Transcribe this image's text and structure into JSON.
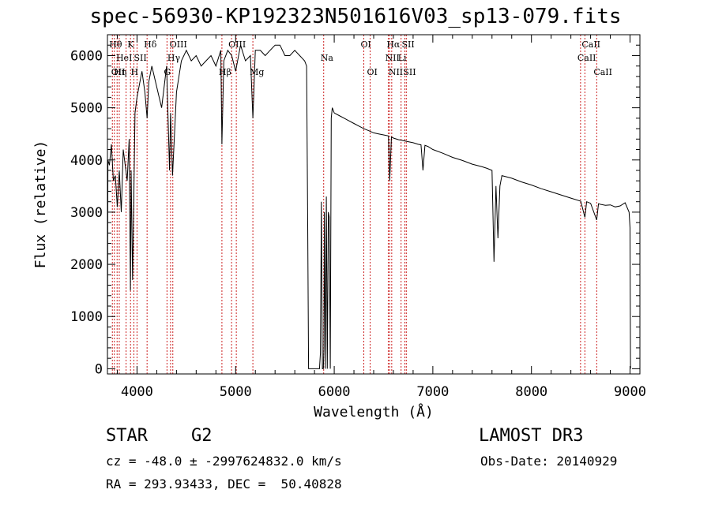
{
  "chart_data": {
    "type": "line",
    "title": "spec-56930-KP192323N501616V03_sp13-079.fits",
    "xlabel": "Wavelength (Å)",
    "ylabel": "Flux (relative)",
    "xlim": [
      3700,
      9100
    ],
    "ylim": [
      -100,
      6400
    ],
    "xticks": [
      4000,
      5000,
      6000,
      7000,
      8000,
      9000
    ],
    "yticks": [
      0,
      1000,
      2000,
      3000,
      4000,
      5000,
      6000
    ],
    "grid": false,
    "series": [
      {
        "x": [
          3700,
          3705,
          3720,
          3740,
          3760,
          3780,
          3800,
          3820,
          3840,
          3860,
          3880,
          3900,
          3920,
          3933,
          3940,
          3955,
          3968,
          3980,
          4000,
          4020,
          4050,
          4080,
          4102,
          4120,
          4150,
          4200,
          4250,
          4300,
          4330,
          4340,
          4360,
          4400,
          4450,
          4500,
          4550,
          4600,
          4650,
          4700,
          4750,
          4800,
          4850,
          4861,
          4880,
          4920,
          4960,
          5000,
          5050,
          5100,
          5150,
          5175,
          5200,
          5250,
          5300,
          5350,
          5400,
          5450,
          5500,
          5550,
          5600,
          5650,
          5700,
          5720,
          5730,
          5740,
          5750,
          5760,
          5780,
          5800,
          5820,
          5840,
          5850,
          5860,
          5870,
          5880,
          5890,
          5895,
          5900,
          5910,
          5920,
          5930,
          5940,
          5950,
          5960,
          5970,
          5980,
          6000,
          6050,
          6100,
          6150,
          6200,
          6250,
          6300,
          6350,
          6400,
          6450,
          6500,
          6550,
          6563,
          6580,
          6600,
          6650,
          6700,
          6750,
          6800,
          6850,
          6880,
          6900,
          6920,
          6950,
          7000,
          7100,
          7200,
          7300,
          7400,
          7500,
          7550,
          7600,
          7620,
          7640,
          7660,
          7680,
          7700,
          7800,
          7900,
          8000,
          8100,
          8200,
          8300,
          8400,
          8500,
          8542,
          8560,
          8600,
          8662,
          8680,
          8700,
          8750,
          8800,
          8850,
          8900,
          8950,
          8990,
          9000,
          9005
        ],
        "y": [
          0,
          4000,
          3900,
          4300,
          3600,
          3700,
          3100,
          3800,
          3000,
          4200,
          3900,
          3600,
          4400,
          1500,
          3800,
          1700,
          3400,
          4900,
          5200,
          5400,
          5700,
          5300,
          4800,
          5500,
          5800,
          5400,
          5000,
          5800,
          3800,
          4900,
          3700,
          5300,
          5900,
          6100,
          5900,
          6000,
          5800,
          5900,
          6000,
          5800,
          6100,
          4300,
          5900,
          6100,
          6000,
          5700,
          6200,
          5900,
          6000,
          4800,
          6100,
          6100,
          6000,
          6100,
          6200,
          6200,
          6000,
          6000,
          6100,
          6000,
          5900,
          5800,
          3000,
          0,
          0,
          0,
          0,
          0,
          0,
          0,
          0,
          300,
          3200,
          0,
          0,
          400,
          3000,
          0,
          3300,
          0,
          3000,
          2900,
          0,
          4800,
          5000,
          4900,
          4850,
          4800,
          4750,
          4700,
          4650,
          4600,
          4560,
          4520,
          4500,
          4480,
          4460,
          3600,
          4440,
          4420,
          4390,
          4370,
          4350,
          4330,
          4300,
          4290,
          3800,
          4280,
          4260,
          4200,
          4130,
          4050,
          3990,
          3920,
          3870,
          3840,
          3800,
          2050,
          3500,
          2500,
          3500,
          3700,
          3650,
          3580,
          3520,
          3450,
          3390,
          3330,
          3270,
          3210,
          2900,
          3200,
          3170,
          2850,
          3160,
          3150,
          3130,
          3140,
          3100,
          3120,
          3180,
          3000,
          2700,
          0
        ]
      }
    ],
    "line_markers": [
      {
        "x": 3750,
        "label": "Hθ",
        "row": 0
      },
      {
        "x": 3770,
        "label": "OII",
        "row": 2
      },
      {
        "x": 3798,
        "label": "Hη",
        "row": 2
      },
      {
        "x": 3820,
        "label": "HeI",
        "row": 1
      },
      {
        "x": 3889,
        "label": "",
        "row": 1
      },
      {
        "x": 3934,
        "label": "K",
        "row": 0
      },
      {
        "x": 3968,
        "label": "H",
        "row": 2
      },
      {
        "x": 4000,
        "label": "SII",
        "row": 1
      },
      {
        "x": 4102,
        "label": "Hδ",
        "row": 0
      },
      {
        "x": 4304,
        "label": "G",
        "row": 2
      },
      {
        "x": 4340,
        "label": "Hγ",
        "row": 1
      },
      {
        "x": 4363,
        "label": "OIII",
        "row": 0
      },
      {
        "x": 4861,
        "label": "Hβ",
        "row": 2
      },
      {
        "x": 4959,
        "label": "OIII",
        "row": 0
      },
      {
        "x": 5007,
        "label": "",
        "row": 0
      },
      {
        "x": 5175,
        "label": "Mg",
        "row": 2
      },
      {
        "x": 5893,
        "label": "Na",
        "row": 1
      },
      {
        "x": 6300,
        "label": "OI",
        "row": 0
      },
      {
        "x": 6364,
        "label": "OI",
        "row": 2
      },
      {
        "x": 6548,
        "label": "NII",
        "row": 1
      },
      {
        "x": 6563,
        "label": "Hα",
        "row": 0
      },
      {
        "x": 6583,
        "label": "NII",
        "row": 2
      },
      {
        "x": 6678,
        "label": "Li",
        "row": 1
      },
      {
        "x": 6716,
        "label": "SII",
        "row": 0
      },
      {
        "x": 6731,
        "label": "SII",
        "row": 2
      },
      {
        "x": 8498,
        "label": "CaII",
        "row": 1
      },
      {
        "x": 8542,
        "label": "CaII",
        "row": 0
      },
      {
        "x": 8662,
        "label": "CaII",
        "row": 2
      }
    ],
    "marker_color": "#cc2222",
    "line_color": "#000000"
  },
  "info": {
    "object_class": "STAR",
    "subclass": "G2",
    "survey": "LAMOST DR3",
    "redshift": "cz = -48.0 ± -2997624832.0 km/s",
    "obs_date": "Obs-Date: 20140929",
    "coords": "RA = 293.93433, DEC =  50.40828"
  }
}
